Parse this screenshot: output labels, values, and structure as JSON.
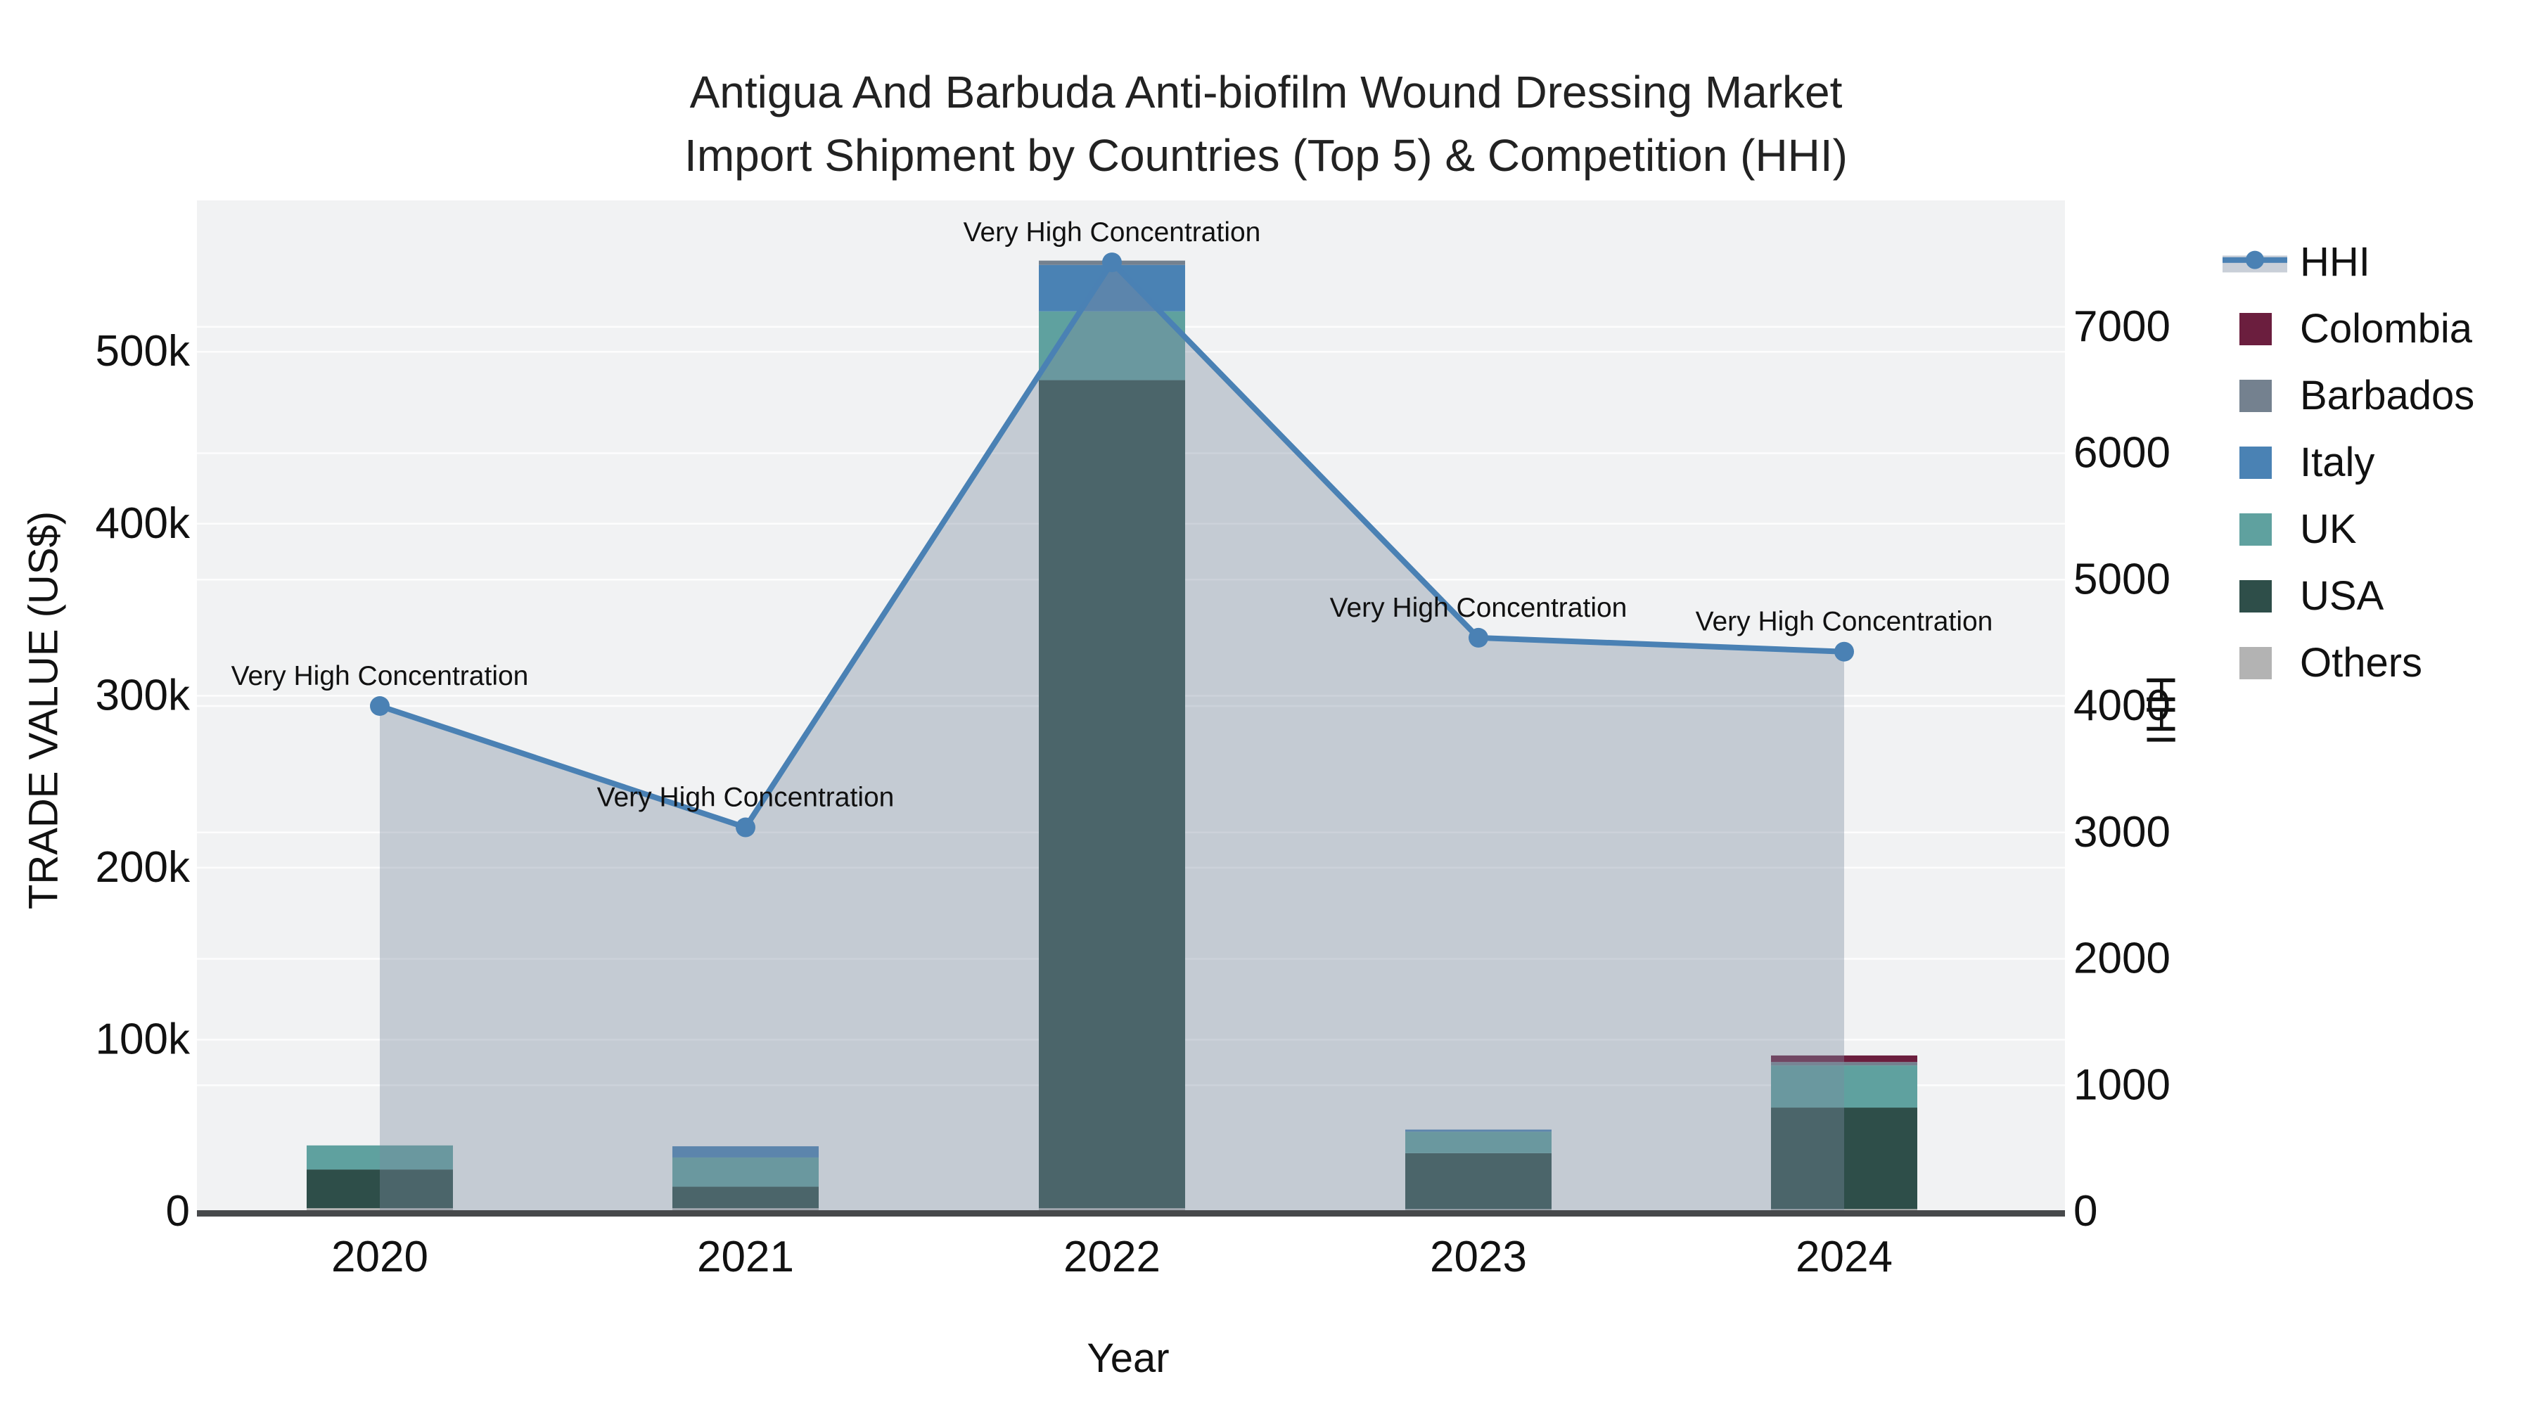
{
  "figure": {
    "title_line1": "Antigua And Barbuda Anti-biofilm Wound Dressing Market",
    "title_line2": "Import Shipment by Countries (Top 5) & Competition (HHI)"
  },
  "chart_data": {
    "type": "combo: stacked-bar (left axis) + line-area (right axis)",
    "x_categories": [
      "2020",
      "2021",
      "2022",
      "2023",
      "2024"
    ],
    "xlabel": "Year",
    "left_axis": {
      "title": "TRADE VALUE (US$)",
      "tick_labels": [
        "0",
        "100k",
        "200k",
        "300k",
        "400k",
        "500k"
      ],
      "tick_values": [
        0,
        100000,
        200000,
        300000,
        400000,
        500000
      ],
      "range": [
        0,
        588000
      ],
      "grid": true
    },
    "right_axis": {
      "title": "HHI",
      "tick_labels": [
        "0",
        "1000",
        "2000",
        "3000",
        "4000",
        "5000",
        "6000",
        "7000"
      ],
      "tick_values": [
        0,
        1000,
        2000,
        3000,
        4000,
        5000,
        6000,
        7000
      ],
      "range": [
        0,
        8000
      ],
      "grid": true
    },
    "bar_series_bottom_to_top": [
      {
        "name": "Others",
        "color": "#b3b3b3",
        "values": [
          2000,
          2000,
          2000,
          1500,
          1500
        ]
      },
      {
        "name": "USA",
        "color": "#2e4e49",
        "values": [
          22500,
          12500,
          481500,
          32500,
          59000
        ]
      },
      {
        "name": "UK",
        "color": "#5fa19f",
        "values": [
          14000,
          17000,
          40000,
          12500,
          24500
        ]
      },
      {
        "name": "Italy",
        "color": "#4a82b4",
        "values": [
          0,
          6500,
          27000,
          1200,
          0
        ]
      },
      {
        "name": "Barbados",
        "color": "#74818f",
        "values": [
          0,
          0,
          2500,
          0,
          2000
        ]
      },
      {
        "name": "Colombia",
        "color": "#6b1e3e",
        "values": [
          0,
          0,
          0,
          0,
          3800
        ]
      }
    ],
    "line_series": {
      "name": "HHI",
      "color": "#4a81b4",
      "area_fill_color": "rgba(123,139,161,0.38)",
      "values": [
        4000,
        3040,
        7510,
        4540,
        4430
      ]
    },
    "annotation_text": "Very High Concentration",
    "annotations_per_point": [
      true,
      true,
      true,
      true,
      true
    ],
    "legend": {
      "position": "right",
      "items": [
        {
          "label": "HHI",
          "type": "line",
          "color": "#4a81b4"
        },
        {
          "label": "Colombia",
          "type": "square",
          "color": "#6b1e3e"
        },
        {
          "label": "Barbados",
          "type": "square",
          "color": "#74818f"
        },
        {
          "label": "Italy",
          "type": "square",
          "color": "#4a82b4"
        },
        {
          "label": "UK",
          "type": "square",
          "color": "#5fa19f"
        },
        {
          "label": "USA",
          "type": "square",
          "color": "#2e4e49"
        },
        {
          "label": "Others",
          "type": "square",
          "color": "#b3b3b3"
        }
      ]
    },
    "style": {
      "plot_bg": "#f1f2f3",
      "grid_color": "#ffffff",
      "axis_line_color": "#47494b",
      "text_color": "#111111"
    }
  }
}
